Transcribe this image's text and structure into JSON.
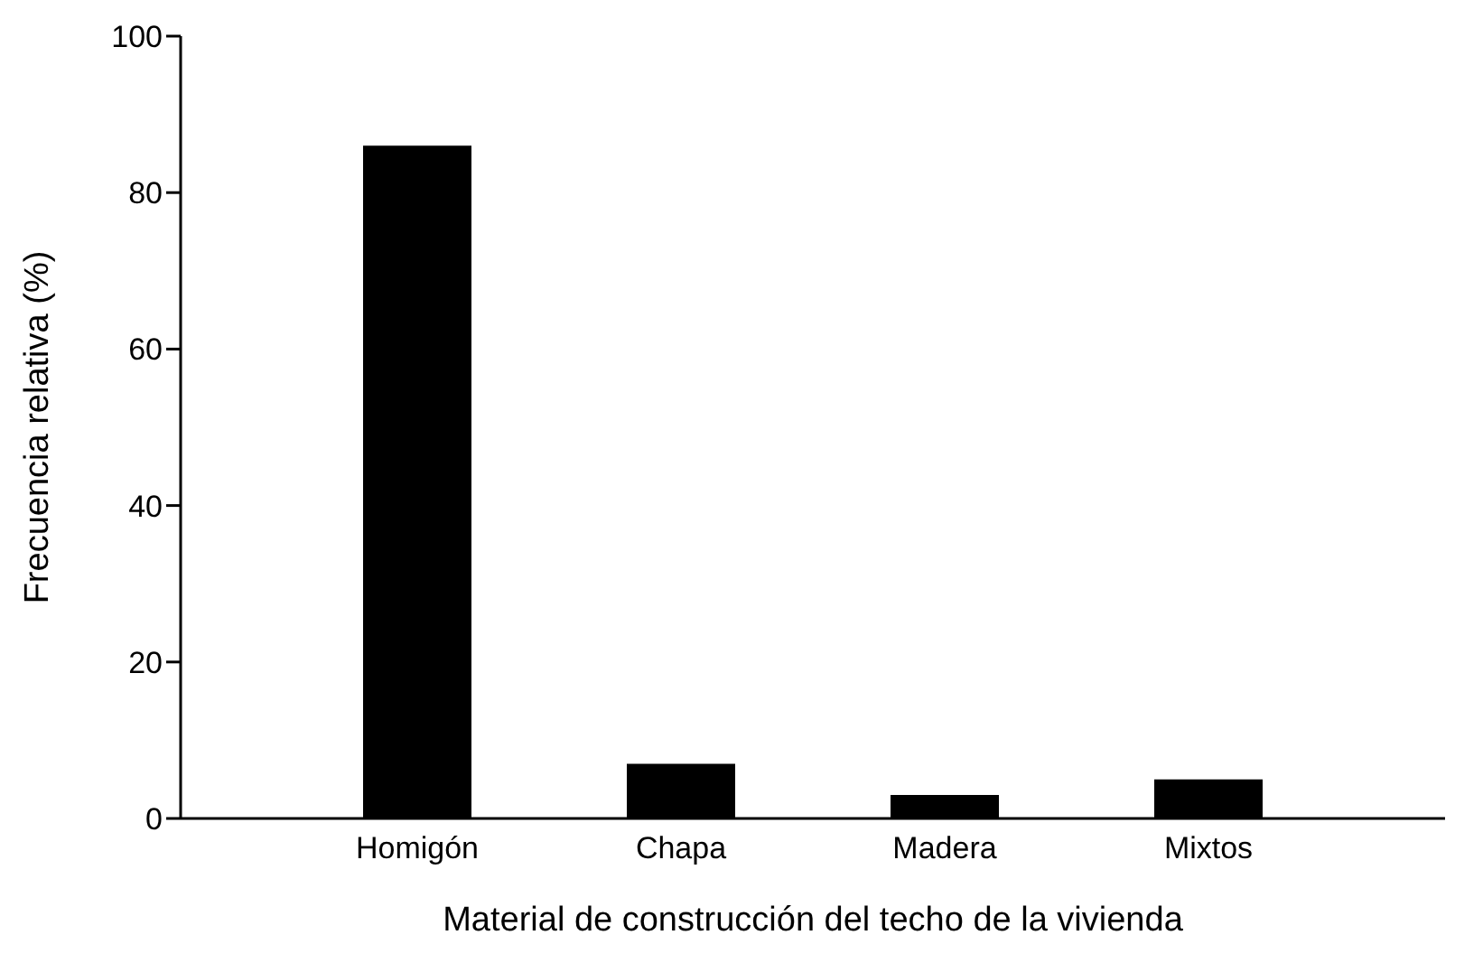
{
  "chart_data": {
    "type": "bar",
    "xlabel": "Material de construcción del techo de la vivienda",
    "ylabel": "Frecuencia relativa (%)",
    "categories": [
      "Homigón",
      "Chapa",
      "Madera",
      "Mixtos"
    ],
    "values": [
      86,
      7,
      3,
      5
    ],
    "color": "#000000",
    "ylim": [
      0,
      100
    ],
    "yticks": [
      0,
      20,
      40,
      60,
      80,
      100
    ],
    "grid": false
  }
}
